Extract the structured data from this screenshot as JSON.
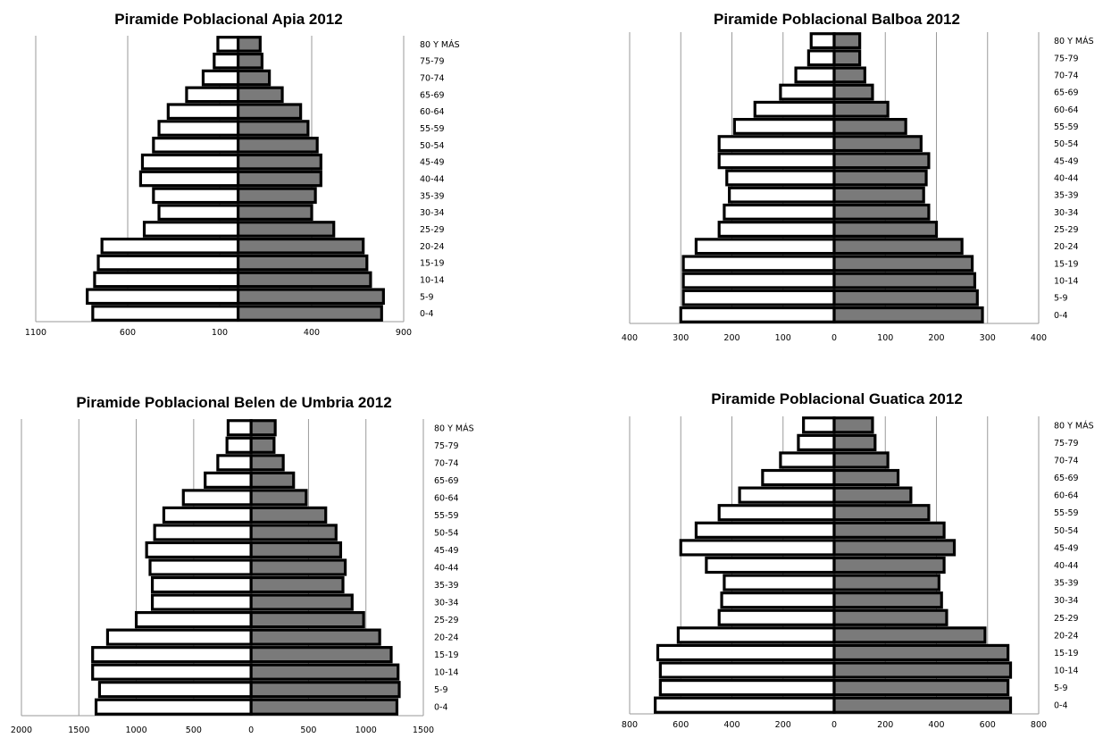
{
  "chart_data": [
    {
      "type": "bar",
      "title": "Piramide Poblacional Apia 2012",
      "categories": [
        "0-4",
        "5-9",
        "10-14",
        "15-19",
        "20-24",
        "25-29",
        "30-34",
        "35-39",
        "40-44",
        "45-49",
        "50-54",
        "55-59",
        "60-64",
        "65-69",
        "70-74",
        "75-79",
        "80 Y MÁS"
      ],
      "series": [
        {
          "values": [
            -790,
            -820,
            -780,
            -760,
            -740,
            -510,
            -430,
            -460,
            -530,
            -520,
            -460,
            -430,
            -380,
            -280,
            -190,
            -130,
            -110
          ]
        },
        {
          "values": [
            780,
            790,
            720,
            700,
            680,
            520,
            400,
            420,
            450,
            450,
            430,
            380,
            340,
            240,
            170,
            130,
            120
          ]
        }
      ],
      "xticks": [
        {
          "v": -1100,
          "label": "1100"
        },
        {
          "v": -600,
          "label": "600"
        },
        {
          "v": -100,
          "label": "100"
        },
        {
          "v": 400,
          "label": "400"
        },
        {
          "v": 900,
          "label": "900"
        }
      ],
      "xlim": [
        -1100,
        900
      ],
      "colors": {
        "left": "#ffffff",
        "right": "#7a7a7a"
      }
    },
    {
      "type": "bar",
      "title": "Piramide Poblacional Balboa 2012",
      "categories": [
        "0-4",
        "5-9",
        "10-14",
        "15-19",
        "20-24",
        "25-29",
        "30-34",
        "35-39",
        "40-44",
        "45-49",
        "50-54",
        "55-59",
        "60-64",
        "65-69",
        "70-74",
        "75-79",
        "80 Y MÁS"
      ],
      "series": [
        {
          "values": [
            -300,
            -295,
            -295,
            -295,
            -270,
            -225,
            -215,
            -205,
            -210,
            -225,
            -225,
            -195,
            -155,
            -105,
            -75,
            -50,
            -45
          ]
        },
        {
          "values": [
            290,
            280,
            275,
            270,
            250,
            200,
            185,
            175,
            180,
            185,
            170,
            140,
            105,
            75,
            60,
            50,
            50
          ]
        }
      ],
      "xticks": [
        {
          "v": -400,
          "label": "400"
        },
        {
          "v": -300,
          "label": "300"
        },
        {
          "v": -200,
          "label": "200"
        },
        {
          "v": -100,
          "label": "100"
        },
        {
          "v": 0,
          "label": "0"
        },
        {
          "v": 100,
          "label": "100"
        },
        {
          "v": 200,
          "label": "200"
        },
        {
          "v": 300,
          "label": "300"
        },
        {
          "v": 400,
          "label": "400"
        }
      ],
      "xlim": [
        -400,
        400
      ],
      "colors": {
        "left": "#ffffff",
        "right": "#7a7a7a"
      }
    },
    {
      "type": "bar",
      "title": "Piramide Poblacional Belen de Umbria 2012",
      "categories": [
        "0-4",
        "5-9",
        "10-14",
        "15-19",
        "20-24",
        "25-29",
        "30-34",
        "35-39",
        "40-44",
        "45-49",
        "50-54",
        "55-59",
        "60-64",
        "65-69",
        "70-74",
        "75-79",
        "80 Y MÁS"
      ],
      "series": [
        {
          "values": [
            -1350,
            -1320,
            -1380,
            -1380,
            -1250,
            -1000,
            -860,
            -860,
            -880,
            -910,
            -840,
            -760,
            -590,
            -400,
            -290,
            -210,
            -200
          ]
        },
        {
          "values": [
            1270,
            1290,
            1280,
            1220,
            1120,
            980,
            880,
            800,
            820,
            780,
            740,
            650,
            480,
            370,
            280,
            200,
            210
          ]
        }
      ],
      "xticks": [
        {
          "v": -2000,
          "label": "2000"
        },
        {
          "v": -1500,
          "label": "1500"
        },
        {
          "v": -1000,
          "label": "1000"
        },
        {
          "v": -500,
          "label": "500"
        },
        {
          "v": 0,
          "label": "0"
        },
        {
          "v": 500,
          "label": "500"
        },
        {
          "v": 1000,
          "label": "1000"
        },
        {
          "v": 1500,
          "label": "1500"
        }
      ],
      "xlim": [
        -2000,
        1500
      ],
      "colors": {
        "left": "#ffffff",
        "right": "#7a7a7a"
      }
    },
    {
      "type": "bar",
      "title": "Piramide Poblacional Guatica 2012",
      "categories": [
        "0-4",
        "5-9",
        "10-14",
        "15-19",
        "20-24",
        "25-29",
        "30-34",
        "35-39",
        "40-44",
        "45-49",
        "50-54",
        "55-59",
        "60-64",
        "65-69",
        "70-74",
        "75-79",
        "80 Y MÁS"
      ],
      "series": [
        {
          "values": [
            -700,
            -680,
            -680,
            -690,
            -610,
            -450,
            -440,
            -430,
            -500,
            -600,
            -540,
            -450,
            -370,
            -280,
            -210,
            -140,
            -120
          ]
        },
        {
          "values": [
            690,
            680,
            690,
            680,
            590,
            440,
            420,
            410,
            430,
            470,
            430,
            370,
            300,
            250,
            210,
            160,
            150
          ]
        }
      ],
      "xticks": [
        {
          "v": -800,
          "label": "800"
        },
        {
          "v": -600,
          "label": "600"
        },
        {
          "v": -400,
          "label": "400"
        },
        {
          "v": -200,
          "label": "200"
        },
        {
          "v": 0,
          "label": "0"
        },
        {
          "v": 200,
          "label": "200"
        },
        {
          "v": 400,
          "label": "400"
        },
        {
          "v": 600,
          "label": "600"
        },
        {
          "v": 800,
          "label": "800"
        }
      ],
      "xlim": [
        -800,
        800
      ],
      "colors": {
        "left": "#ffffff",
        "right": "#7a7a7a"
      }
    }
  ]
}
